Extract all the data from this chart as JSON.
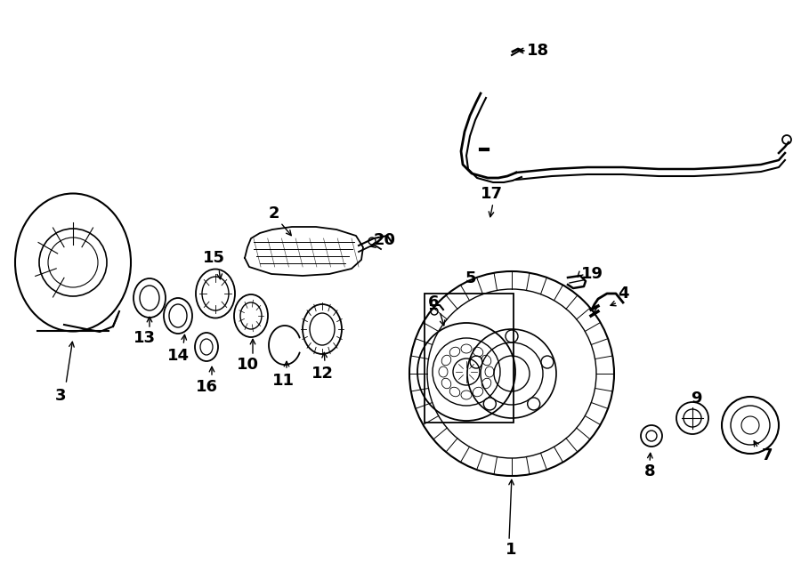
{
  "bg": "#ffffff",
  "lc": "#000000",
  "fig_w": 9.0,
  "fig_h": 6.61,
  "dpi": 100,
  "xlim": [
    0,
    900
  ],
  "ylim": [
    0,
    661
  ]
}
